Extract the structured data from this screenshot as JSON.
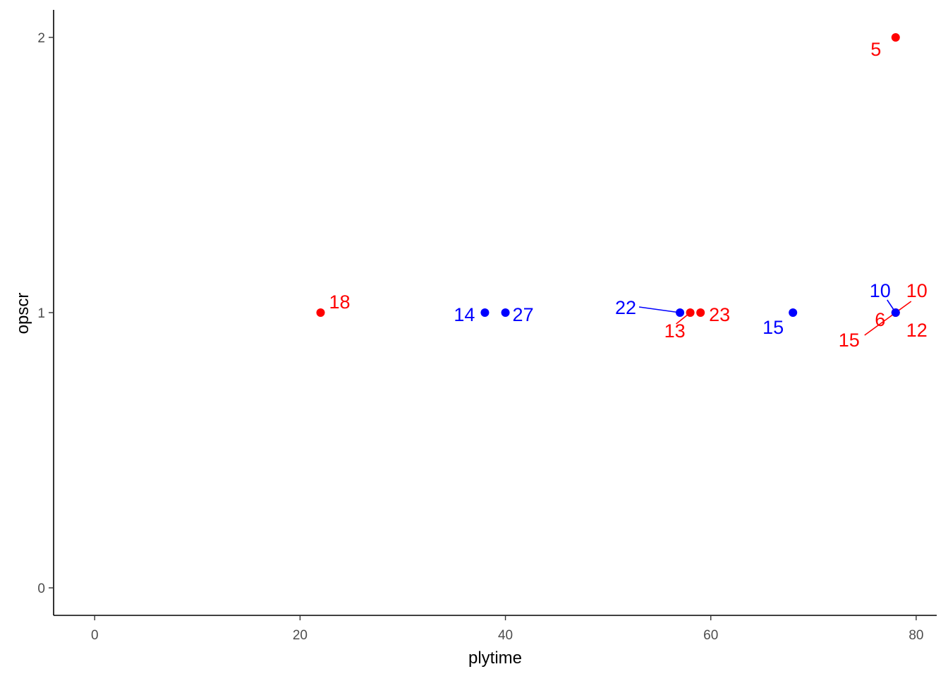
{
  "chart_data": {
    "type": "scatter",
    "title": "",
    "xlabel": "plytime",
    "ylabel": "opscr",
    "xlim": [
      -4,
      82
    ],
    "ylim": [
      -0.1,
      2.1
    ],
    "x_ticks": [
      0,
      20,
      40,
      60,
      80
    ],
    "y_ticks": [
      0,
      1,
      2
    ],
    "grid": false,
    "legend": "none",
    "colors": {
      "red": "#ff0000",
      "blue": "#0000ff"
    },
    "series": [
      {
        "color": "#ff0000",
        "points": [
          {
            "x": 78,
            "y": 2
          },
          {
            "x": 22,
            "y": 1
          },
          {
            "x": 58,
            "y": 1
          },
          {
            "x": 59,
            "y": 1
          },
          {
            "x": 78,
            "y": 1
          }
        ]
      },
      {
        "color": "#0000ff",
        "points": [
          {
            "x": 38,
            "y": 1
          },
          {
            "x": 40,
            "y": 1
          },
          {
            "x": 57,
            "y": 1
          },
          {
            "x": 68,
            "y": 1
          },
          {
            "x": 78,
            "y": 1
          }
        ]
      }
    ],
    "labels": [
      {
        "text": "5",
        "color": "#ff0000",
        "x": 78,
        "y": 2
      },
      {
        "text": "18",
        "color": "#ff0000",
        "x": 22,
        "y": 1
      },
      {
        "text": "14",
        "color": "#0000ff",
        "x": 38,
        "y": 1
      },
      {
        "text": "27",
        "color": "#0000ff",
        "x": 40,
        "y": 1
      },
      {
        "text": "22",
        "color": "#0000ff",
        "x": 57,
        "y": 1
      },
      {
        "text": "13",
        "color": "#ff0000",
        "x": 58,
        "y": 1
      },
      {
        "text": "23",
        "color": "#ff0000",
        "x": 59,
        "y": 1
      },
      {
        "text": "15",
        "color": "#0000ff",
        "x": 68,
        "y": 1
      },
      {
        "text": "10",
        "color": "#0000ff",
        "x": 78,
        "y": 1
      },
      {
        "text": "10",
        "color": "#ff0000",
        "x": 78,
        "y": 1
      },
      {
        "text": "6",
        "color": "#ff0000",
        "x": 78,
        "y": 1
      },
      {
        "text": "15",
        "color": "#ff0000",
        "x": 78,
        "y": 1
      },
      {
        "text": "12",
        "color": "#ff0000",
        "x": 78,
        "y": 1
      }
    ]
  }
}
